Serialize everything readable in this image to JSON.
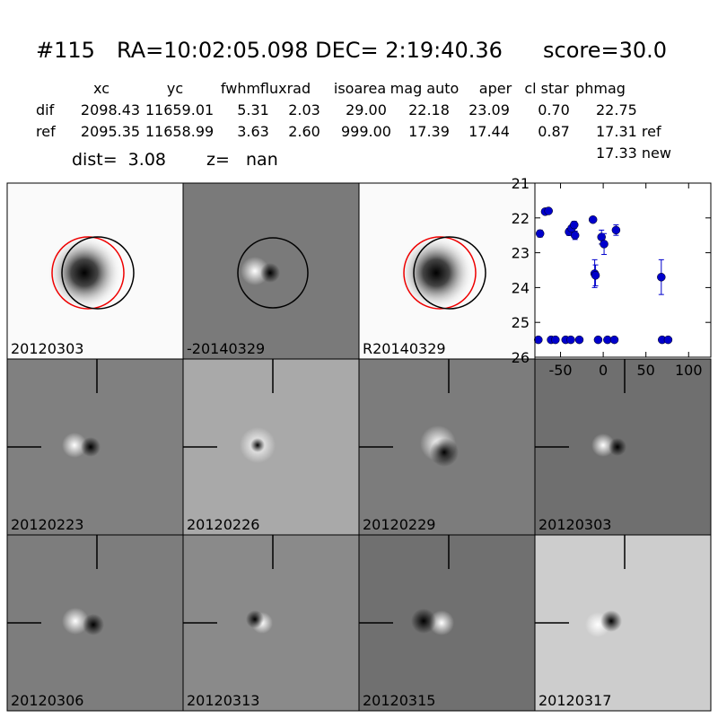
{
  "header": {
    "id": "#115",
    "coords": "RA=10:02:05.098 DEC= 2:19:40.36",
    "score": "score=30.0"
  },
  "table": {
    "columns": [
      "xc",
      "yc",
      "fwhm",
      "fluxrad",
      "isoarea",
      "mag auto",
      "aper",
      "cl star",
      "phmag"
    ],
    "rows": [
      {
        "label": "dif",
        "cells": [
          "2098.43",
          "11659.01",
          "5.31",
          "2.03",
          "29.00",
          "22.18",
          "23.09",
          "0.70",
          "22.75"
        ]
      },
      {
        "label": "ref",
        "cells": [
          "2095.35",
          "11658.99",
          "3.63",
          "2.60",
          "999.00",
          "17.39",
          "17.44",
          "0.87",
          "17.31 ref"
        ]
      }
    ],
    "extra": "17.33 new"
  },
  "dist": "dist=  3.08",
  "z": "z=   nan",
  "stamps": [
    {
      "label": "20120303"
    },
    {
      "label": "-20140329"
    },
    {
      "label": "R20140329"
    },
    {
      "label": "20120223"
    },
    {
      "label": "20120226"
    },
    {
      "label": "20120229"
    },
    {
      "label": "20120303",
      "color": "#ff0000"
    },
    {
      "label": "20120306"
    },
    {
      "label": "20120313"
    },
    {
      "label": "20120315"
    },
    {
      "label": "20120317"
    }
  ],
  "chart_data": {
    "type": "scatter",
    "x": [
      -76,
      -74,
      -68,
      -64,
      -61,
      -56,
      -44,
      -40,
      -38,
      -37,
      -34,
      -33,
      -28,
      -12,
      -10,
      -9,
      -6,
      -2,
      1,
      5,
      13,
      15,
      68,
      69,
      76
    ],
    "values": [
      25.5,
      22.45,
      21.82,
      21.8,
      25.5,
      25.5,
      25.5,
      22.4,
      25.5,
      22.3,
      22.2,
      22.5,
      25.5,
      22.05,
      23.6,
      23.65,
      25.5,
      22.55,
      22.75,
      25.5,
      25.5,
      22.35,
      23.7,
      25.5,
      25.5
    ],
    "errors": [
      0.03,
      0.1,
      0.05,
      0.05,
      0.03,
      0.03,
      0.03,
      0.1,
      0.03,
      0.08,
      0.1,
      0.12,
      0.03,
      0.06,
      0.4,
      0.3,
      0.03,
      0.2,
      0.3,
      0.03,
      0.03,
      0.15,
      0.5,
      0.03,
      0.03
    ],
    "color": "#0000cc",
    "xlim": [
      -80,
      126
    ],
    "ylim": [
      26,
      21
    ],
    "xticks": [
      -50,
      0,
      50,
      100
    ],
    "yticks": [
      21,
      22,
      23,
      24,
      25,
      26
    ]
  }
}
